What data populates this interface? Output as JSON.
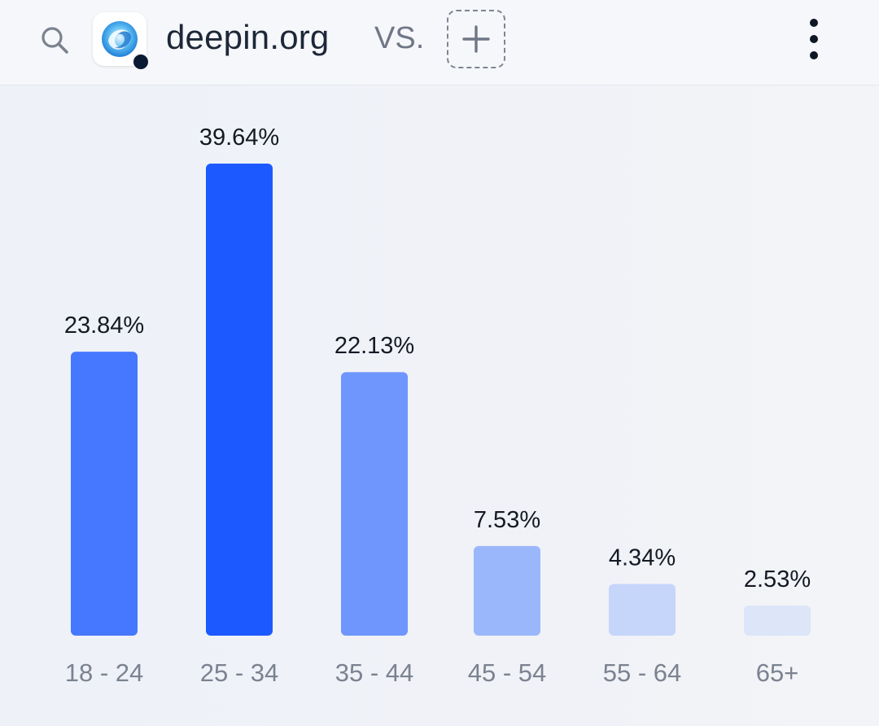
{
  "header": {
    "site_name": "deepin.org",
    "vs_label": "VS.",
    "icons": {
      "search": "search-icon",
      "logo": "deepin-logo-icon",
      "add": "plus-icon",
      "more": "more-vertical-icon"
    }
  },
  "chart_data": {
    "type": "bar",
    "title": "",
    "xlabel": "",
    "ylabel": "",
    "categories": [
      "18 - 24",
      "25 - 34",
      "35 - 44",
      "45 - 54",
      "55 - 64",
      "65+"
    ],
    "values": [
      23.84,
      39.64,
      22.13,
      7.53,
      4.34,
      2.53
    ],
    "value_labels": [
      "23.84%",
      "39.64%",
      "22.13%",
      "7.53%",
      "4.34%",
      "2.53%"
    ],
    "colors": [
      "#4577ff",
      "#1c5aff",
      "#6f96fd",
      "#9bb7fc",
      "#c6d5fa",
      "#dde5f8"
    ],
    "ylim": [
      0,
      39.64
    ],
    "grid": false,
    "legend": "none"
  }
}
